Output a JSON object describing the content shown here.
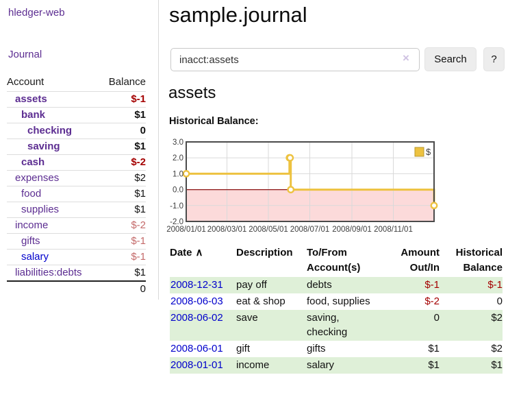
{
  "colors": {
    "purple": "#5c2d91",
    "blue": "#0000cc",
    "neg-strong": "#a40000",
    "neg-soft": "#c46a6a",
    "row-green": "#dff0d8",
    "chart-line": "#edc240",
    "chart-neg-fill": "#fcdada",
    "chart-zero": "#8b1212",
    "chart-border": "#4a4a4a",
    "chart-grid": "#d9d9d9"
  },
  "sidebar": {
    "brand": "hledger-web",
    "journal_link": "Journal",
    "account_col": "Account",
    "balance_col": "Balance",
    "accounts": [
      {
        "name": "assets",
        "balance": "$-1",
        "depth": 1,
        "bold": true,
        "balance_color": "neg_strong"
      },
      {
        "name": "bank",
        "balance": "$1",
        "depth": 2,
        "bold": true,
        "balance_color": "pos"
      },
      {
        "name": "checking",
        "balance": "0",
        "depth": 3,
        "bold": true,
        "balance_color": "pos"
      },
      {
        "name": "saving",
        "balance": "$1",
        "depth": 3,
        "bold": true,
        "balance_color": "pos"
      },
      {
        "name": "cash",
        "balance": "$-2",
        "depth": 2,
        "bold": true,
        "balance_color": "neg_strong"
      },
      {
        "name": "expenses",
        "balance": "$2",
        "depth": 1,
        "bold": false,
        "balance_color": "pos"
      },
      {
        "name": "food",
        "balance": "$1",
        "depth": 2,
        "bold": false,
        "balance_color": "pos"
      },
      {
        "name": "supplies",
        "balance": "$1",
        "depth": 2,
        "bold": false,
        "balance_color": "pos"
      },
      {
        "name": "income",
        "balance": "$-2",
        "depth": 1,
        "bold": false,
        "balance_color": "neg_soft"
      },
      {
        "name": "gifts",
        "balance": "$-1",
        "depth": 2,
        "bold": false,
        "balance_color": "neg_soft"
      },
      {
        "name": "salary",
        "balance": "$-1",
        "depth": 2,
        "bold": false,
        "balance_color": "neg_soft",
        "link_color": "blue"
      },
      {
        "name": "liabilities:debts",
        "balance": "$1",
        "depth": 1,
        "bold": false,
        "balance_color": "pos"
      }
    ],
    "total": "0"
  },
  "main": {
    "title": "sample.journal",
    "search": {
      "value": "inacct:assets",
      "clear_icon": "×",
      "search_button": "Search",
      "help_button": "?"
    },
    "account_heading": "assets",
    "chart_title": "Historical Balance:"
  },
  "chart_data": {
    "type": "line",
    "step": true,
    "title": "Historical Balance of assets",
    "xlim": [
      "2008-01-01",
      "2008-12-31"
    ],
    "ylim": [
      -2,
      3
    ],
    "y_ticks": [
      3,
      2,
      1,
      0,
      -1,
      -2
    ],
    "x_ticks": [
      "2008/01/01",
      "2008/03/01",
      "2008/05/01",
      "2008/07/01",
      "2008/09/01",
      "2008/11/01"
    ],
    "legend": {
      "label": "$",
      "position": "top-right"
    },
    "grid": true,
    "negative_region_shaded": true,
    "series": [
      {
        "name": "$",
        "points": [
          {
            "date": "2008-01-01",
            "value": 1
          },
          {
            "date": "2008-06-01",
            "value": 2
          },
          {
            "date": "2008-06-02",
            "value": 2
          },
          {
            "date": "2008-06-03",
            "value": 0
          },
          {
            "date": "2008-12-31",
            "value": -1
          }
        ]
      }
    ]
  },
  "transactions": {
    "headers": {
      "date": "Date",
      "sort_arrow": "∧",
      "description": "Description",
      "accounts": "To/From Account(s)",
      "amount": "Amount Out/In",
      "balance": "Historical Balance"
    },
    "rows": [
      {
        "date": "2008-12-31",
        "description": "pay off",
        "accounts": "debts",
        "amount": "$-1",
        "amount_neg": true,
        "balance": "$-1",
        "balance_neg": true,
        "highlight": true
      },
      {
        "date": "2008-06-03",
        "description": "eat & shop",
        "accounts": "food, supplies",
        "amount": "$-2",
        "amount_neg": true,
        "balance": "0",
        "balance_neg": false,
        "highlight": false
      },
      {
        "date": "2008-06-02",
        "description": "save",
        "accounts": "saving, checking",
        "amount": "0",
        "amount_neg": false,
        "balance": "$2",
        "balance_neg": false,
        "highlight": true
      },
      {
        "date": "2008-06-01",
        "description": "gift",
        "accounts": "gifts",
        "amount": "$1",
        "amount_neg": false,
        "balance": "$2",
        "balance_neg": false,
        "highlight": false
      },
      {
        "date": "2008-01-01",
        "description": "income",
        "accounts": "salary",
        "amount": "$1",
        "amount_neg": false,
        "balance": "$1",
        "balance_neg": false,
        "highlight": true
      }
    ]
  }
}
